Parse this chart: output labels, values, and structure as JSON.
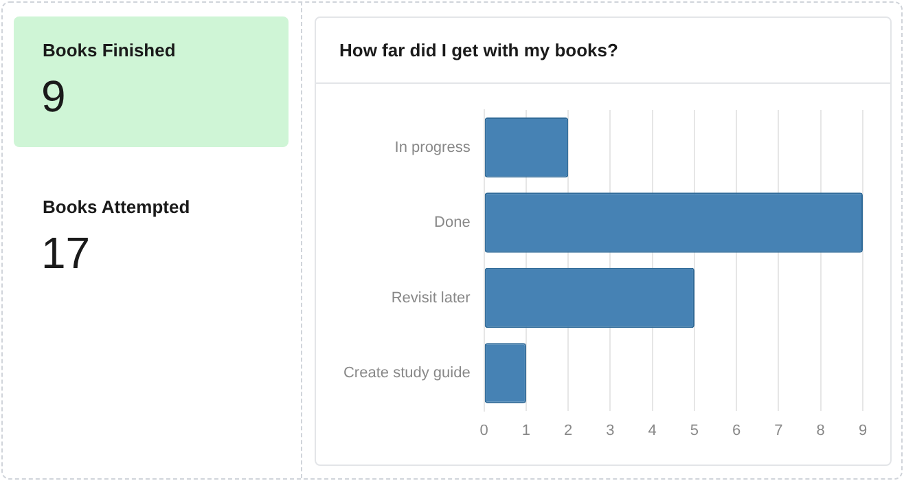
{
  "chart_data": [
    {
      "type": "other",
      "title": "Books Finished",
      "annotations": [
        "9"
      ],
      "color": "#cff5d6"
    },
    {
      "type": "other",
      "title": "Books Attempted",
      "annotations": [
        "17"
      ]
    },
    {
      "type": "bar",
      "title": "How far did I get with my books?",
      "orientation": "horizontal",
      "categories": [
        "In progress",
        "Done",
        "Revisit later",
        "Create study guide"
      ],
      "values": [
        2,
        9,
        5,
        1
      ],
      "color": "#4682b4",
      "xlim": [
        0,
        9
      ],
      "xticks": [
        0,
        1,
        2,
        3,
        4,
        5,
        6,
        7,
        8,
        9
      ],
      "grid": "x"
    }
  ]
}
